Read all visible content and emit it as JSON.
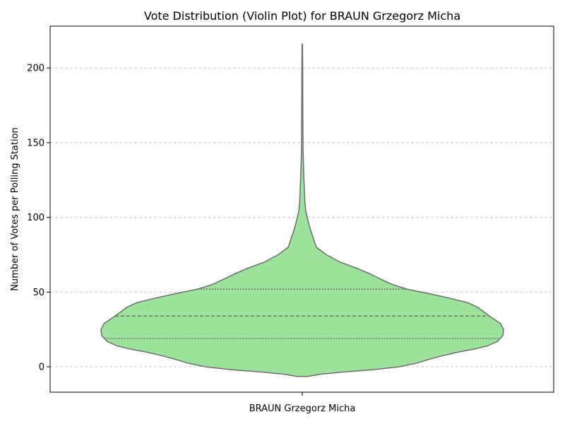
{
  "chart_data": {
    "type": "violin",
    "title": "Vote Distribution (Violin Plot) for BRAUN Grzegorz Micha",
    "xlabel": "",
    "ylabel": "Number of Votes per Polling Station",
    "categories": [
      "BRAUN Grzegorz Micha"
    ],
    "ylim": [
      -17,
      228
    ],
    "yticks": [
      0,
      50,
      100,
      150,
      200
    ],
    "grid": "y-dashed",
    "color": "#9be29b",
    "edge_color": "#6e6e6e",
    "quartiles": {
      "q1": 19,
      "median": 34,
      "q3": 52
    },
    "density_profile": [
      {
        "y": -6.5,
        "w": 0.025
      },
      {
        "y": -5,
        "w": 0.09
      },
      {
        "y": -3.5,
        "w": 0.2
      },
      {
        "y": -2,
        "w": 0.35
      },
      {
        "y": 0,
        "w": 0.48
      },
      {
        "y": 2.5,
        "w": 0.57
      },
      {
        "y": 5,
        "w": 0.63
      },
      {
        "y": 7.5,
        "w": 0.7
      },
      {
        "y": 10,
        "w": 0.78
      },
      {
        "y": 12,
        "w": 0.86
      },
      {
        "y": 14,
        "w": 0.92
      },
      {
        "y": 17,
        "w": 0.97
      },
      {
        "y": 21,
        "w": 0.997
      },
      {
        "y": 25,
        "w": 1.0
      },
      {
        "y": 29,
        "w": 0.985
      },
      {
        "y": 34,
        "w": 0.93
      },
      {
        "y": 40,
        "w": 0.87
      },
      {
        "y": 43,
        "w": 0.82
      },
      {
        "y": 46,
        "w": 0.73
      },
      {
        "y": 49,
        "w": 0.63
      },
      {
        "y": 52,
        "w": 0.52
      },
      {
        "y": 55,
        "w": 0.45
      },
      {
        "y": 58,
        "w": 0.4
      },
      {
        "y": 62,
        "w": 0.34
      },
      {
        "y": 66,
        "w": 0.27
      },
      {
        "y": 70,
        "w": 0.19
      },
      {
        "y": 75,
        "w": 0.12
      },
      {
        "y": 80,
        "w": 0.07
      },
      {
        "y": 86,
        "w": 0.055
      },
      {
        "y": 92,
        "w": 0.04
      },
      {
        "y": 98,
        "w": 0.028
      },
      {
        "y": 104,
        "w": 0.018
      },
      {
        "y": 110,
        "w": 0.013
      },
      {
        "y": 118,
        "w": 0.011
      },
      {
        "y": 126,
        "w": 0.008
      },
      {
        "y": 135,
        "w": 0.006
      },
      {
        "y": 145,
        "w": 0.004
      },
      {
        "y": 160,
        "w": 0.003
      },
      {
        "y": 180,
        "w": 0.0025
      },
      {
        "y": 200,
        "w": 0.002
      },
      {
        "y": 216,
        "w": 0.001
      }
    ]
  }
}
